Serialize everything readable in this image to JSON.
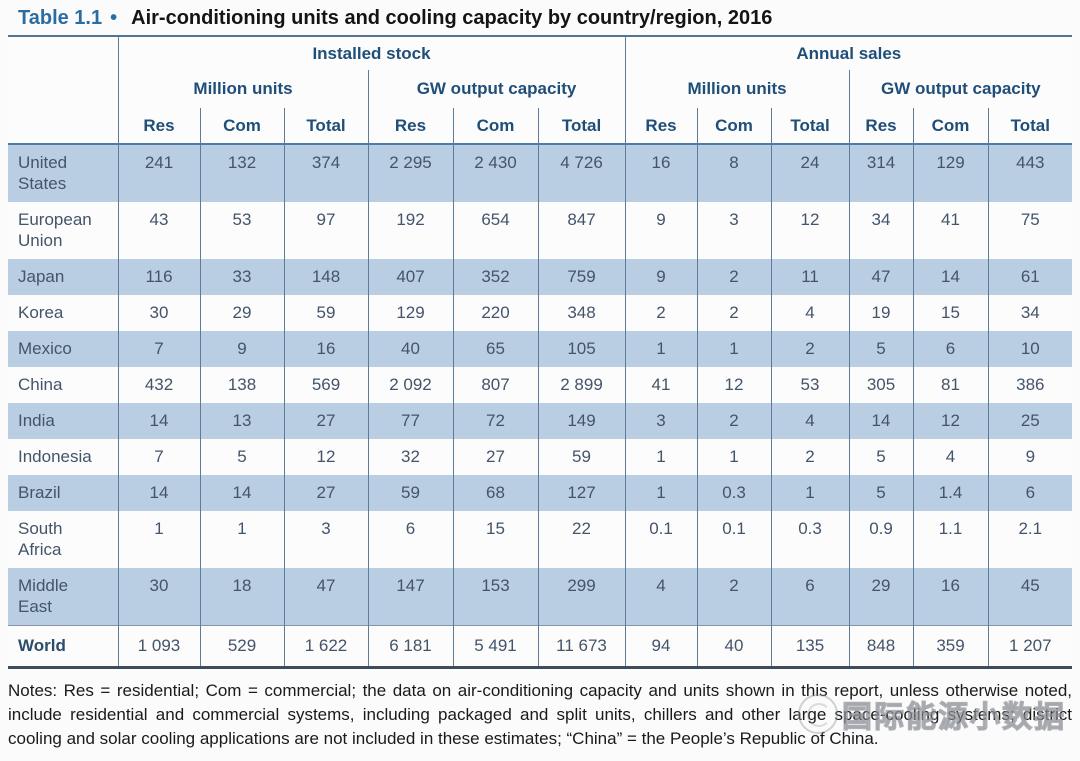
{
  "colors": {
    "accent": "#2b6ca3",
    "header_text": "#1f4e79",
    "row_shade": "#b9cee3",
    "body_text": "#44546a"
  },
  "title": {
    "tag": "Table 1.1",
    "bullet": "•",
    "text": "Air-conditioning units and cooling capacity by country/region, 2016"
  },
  "table": {
    "groups": [
      {
        "label": "Installed stock",
        "subgroups": [
          "Million units",
          "GW output capacity"
        ]
      },
      {
        "label": "Annual sales",
        "subgroups": [
          "Million units",
          "GW output capacity"
        ]
      }
    ],
    "leaf_headers": [
      "Res",
      "Com",
      "Total",
      "Res",
      "Com",
      "Total",
      "Res",
      "Com",
      "Total",
      "Res",
      "Com",
      "Total"
    ],
    "rows": [
      {
        "label": "United\nStates",
        "shaded": true,
        "bold": false,
        "values": [
          "241",
          "132",
          "374",
          "2 295",
          "2 430",
          "4 726",
          "16",
          "8",
          "24",
          "314",
          "129",
          "443"
        ]
      },
      {
        "label": "European\nUnion",
        "shaded": false,
        "bold": false,
        "values": [
          "43",
          "53",
          "97",
          "192",
          "654",
          "847",
          "9",
          "3",
          "12",
          "34",
          "41",
          "75"
        ]
      },
      {
        "label": "Japan",
        "shaded": true,
        "bold": false,
        "values": [
          "116",
          "33",
          "148",
          "407",
          "352",
          "759",
          "9",
          "2",
          "11",
          "47",
          "14",
          "61"
        ]
      },
      {
        "label": "Korea",
        "shaded": false,
        "bold": false,
        "values": [
          "30",
          "29",
          "59",
          "129",
          "220",
          "348",
          "2",
          "2",
          "4",
          "19",
          "15",
          "34"
        ]
      },
      {
        "label": "Mexico",
        "shaded": true,
        "bold": false,
        "values": [
          "7",
          "9",
          "16",
          "40",
          "65",
          "105",
          "1",
          "1",
          "2",
          "5",
          "6",
          "10"
        ]
      },
      {
        "label": "China",
        "shaded": false,
        "bold": false,
        "values": [
          "432",
          "138",
          "569",
          "2 092",
          "807",
          "2 899",
          "41",
          "12",
          "53",
          "305",
          "81",
          "386"
        ]
      },
      {
        "label": "India",
        "shaded": true,
        "bold": false,
        "values": [
          "14",
          "13",
          "27",
          "77",
          "72",
          "149",
          "3",
          "2",
          "4",
          "14",
          "12",
          "25"
        ]
      },
      {
        "label": "Indonesia",
        "shaded": false,
        "bold": false,
        "values": [
          "7",
          "5",
          "12",
          "32",
          "27",
          "59",
          "1",
          "1",
          "2",
          "5",
          "4",
          "9"
        ]
      },
      {
        "label": "Brazil",
        "shaded": true,
        "bold": false,
        "values": [
          "14",
          "14",
          "27",
          "59",
          "68",
          "127",
          "1",
          "0.3",
          "1",
          "5",
          "1.4",
          "6"
        ]
      },
      {
        "label": "South\nAfrica",
        "shaded": false,
        "bold": false,
        "values": [
          "1",
          "1",
          "3",
          "6",
          "15",
          "22",
          "0.1",
          "0.1",
          "0.3",
          "0.9",
          "1.1",
          "2.1"
        ]
      },
      {
        "label": "Middle\nEast",
        "shaded": true,
        "bold": false,
        "values": [
          "30",
          "18",
          "47",
          "147",
          "153",
          "299",
          "4",
          "2",
          "6",
          "29",
          "16",
          "45"
        ]
      },
      {
        "label": "World",
        "shaded": false,
        "bold": true,
        "values": [
          "1 093",
          "529",
          "1 622",
          "6 181",
          "5 491",
          "11 673",
          "94",
          "40",
          "135",
          "848",
          "359",
          "1 207"
        ]
      }
    ]
  },
  "notes": "Notes: Res = residential; Com = commercial; the data on air-conditioning capacity and units shown in this report, unless otherwise noted, include residential and commercial systems, including packaged and split units, chillers and other large space-cooling systems; district cooling and solar cooling applications are not included in these estimates; “China” = the People’s Republic of China.",
  "watermark": {
    "text": "国际能源小数据"
  }
}
